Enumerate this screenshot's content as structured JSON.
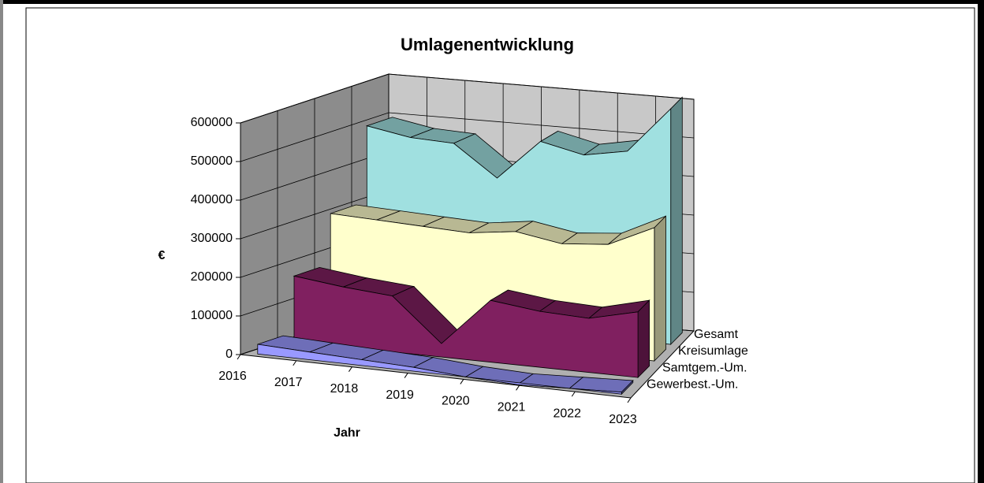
{
  "chart_data": {
    "type": "area3d",
    "title": "Umlagenentwicklung",
    "x_label": "Jahr",
    "y_label": "€",
    "categories": [
      "2016",
      "2017",
      "2018",
      "2019",
      "2020",
      "2021",
      "2022",
      "2023"
    ],
    "series": [
      {
        "name": "Gewerbest.-Um.",
        "color": "#9999ff",
        "values": [
          25000,
          20000,
          15000,
          10000,
          0,
          -5000,
          0,
          5000
        ]
      },
      {
        "name": "Samtgem.-Um.",
        "color": "#802060",
        "values": [
          170000,
          155000,
          145000,
          35000,
          160000,
          145000,
          140000,
          170000
        ]
      },
      {
        "name": "Kreisumlage",
        "color": "#ffffcc",
        "values": [
          300000,
          295000,
          290000,
          285000,
          300000,
          280000,
          290000,
          345000
        ]
      },
      {
        "name": "Gesamt",
        "color": "#a0e0e0",
        "values": [
          495000,
          475000,
          470000,
          390000,
          495000,
          470000,
          490000,
          610000
        ]
      }
    ],
    "ylim": [
      0,
      600000
    ],
    "yticks": [
      0,
      100000,
      200000,
      300000,
      400000,
      500000,
      600000
    ],
    "grid": true
  }
}
